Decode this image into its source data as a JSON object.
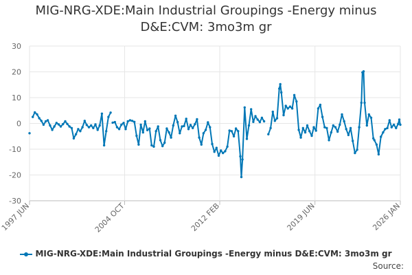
{
  "chart_data": {
    "type": "line",
    "title": "MIG-NRG-XDE:Main Industrial Groupings -Energy minus D&E:CVM: 3mo3m gr",
    "ylim": [
      -30,
      30
    ],
    "yticks": [
      30,
      20,
      10,
      0,
      -10,
      -20,
      -30
    ],
    "xlim": [
      1997.42,
      2026.0
    ],
    "xticks": [
      {
        "label": "1997 JUN",
        "x": 1997.42
      },
      {
        "label": "2004 OCT",
        "x": 2004.75
      },
      {
        "label": "2012 FEB",
        "x": 2012.08
      },
      {
        "label": "2019 JUN",
        "x": 2019.42
      },
      {
        "label": "2026 JAN",
        "x": 2026.0
      }
    ],
    "series": [
      {
        "name": "MIG-NRG-XDE:Main Industrial Groupings -Energy minus D&E:CVM: 3mo3m gr",
        "color": "#0077b6",
        "segments": [
          [
            [
              1997.42,
              -3.8
            ]
          ],
          [
            [
              1997.67,
              2.5
            ],
            [
              1997.83,
              4.3
            ],
            [
              1998.0,
              3.5
            ],
            [
              1998.17,
              2.0
            ],
            [
              1998.33,
              1.0
            ],
            [
              1998.5,
              -0.5
            ],
            [
              1998.67,
              0.8
            ],
            [
              1998.83,
              1.2
            ],
            [
              1999.0,
              -0.8
            ],
            [
              1999.17,
              -2.5
            ],
            [
              1999.33,
              -1.2
            ],
            [
              1999.5,
              0.2
            ],
            [
              1999.67,
              -0.4
            ],
            [
              1999.83,
              -1.2
            ],
            [
              2000.0,
              -0.3
            ],
            [
              2000.17,
              0.8
            ],
            [
              2000.33,
              -0.2
            ],
            [
              2000.5,
              -1.2
            ],
            [
              2000.67,
              -1.8
            ],
            [
              2000.83,
              -5.8
            ],
            [
              2001.0,
              -4.2
            ],
            [
              2001.17,
              -2.2
            ],
            [
              2001.33,
              -3.0
            ],
            [
              2001.5,
              -1.5
            ],
            [
              2001.67,
              1.0
            ],
            [
              2001.83,
              -0.6
            ],
            [
              2002.0,
              -1.5
            ],
            [
              2002.17,
              -0.8
            ],
            [
              2002.33,
              -1.8
            ],
            [
              2002.5,
              -0.4
            ],
            [
              2002.67,
              -2.5
            ],
            [
              2002.83,
              -0.8
            ],
            [
              2003.0,
              3.8
            ],
            [
              2003.17,
              -8.5
            ],
            [
              2003.33,
              -3.0
            ],
            [
              2003.5,
              2.5
            ],
            [
              2003.67,
              4.2
            ]
          ],
          [
            [
              2003.83,
              0.3
            ],
            [
              2004.0,
              0.5
            ],
            [
              2004.17,
              -1.5
            ],
            [
              2004.33,
              -2.2
            ],
            [
              2004.5,
              -0.5
            ],
            [
              2004.67,
              0.2
            ],
            [
              2004.83,
              -2.2
            ],
            [
              2005.0,
              0.8
            ],
            [
              2005.17,
              1.2
            ],
            [
              2005.33,
              1.0
            ],
            [
              2005.5,
              0.6
            ],
            [
              2005.67,
              -4.8
            ],
            [
              2005.83,
              -8.2
            ],
            [
              2006.0,
              -0.5
            ],
            [
              2006.17,
              -3.5
            ],
            [
              2006.33,
              0.8
            ],
            [
              2006.5,
              -2.6
            ],
            [
              2006.67,
              -2.0
            ],
            [
              2006.83,
              -8.5
            ],
            [
              2007.0,
              -9.0
            ],
            [
              2007.17,
              -3.0
            ],
            [
              2007.33,
              -1.2
            ],
            [
              2007.5,
              -6.5
            ],
            [
              2007.67,
              -8.8
            ],
            [
              2007.83,
              -7.5
            ],
            [
              2008.0,
              -2.0
            ],
            [
              2008.17,
              -3.5
            ],
            [
              2008.33,
              -5.5
            ],
            [
              2008.5,
              -0.8
            ],
            [
              2008.67,
              3.0
            ],
            [
              2008.83,
              0.5
            ],
            [
              2009.0,
              -3.8
            ],
            [
              2009.17,
              -1.2
            ],
            [
              2009.33,
              -1.0
            ],
            [
              2009.5,
              1.8
            ],
            [
              2009.67,
              -2.2
            ],
            [
              2009.83,
              -0.6
            ],
            [
              2010.0,
              -1.8
            ],
            [
              2010.17,
              -0.3
            ],
            [
              2010.33,
              1.6
            ],
            [
              2010.5,
              -5.5
            ],
            [
              2010.67,
              -8.2
            ],
            [
              2010.83,
              -3.8
            ],
            [
              2011.0,
              -2.5
            ],
            [
              2011.17,
              0.4
            ],
            [
              2011.33,
              -1.5
            ],
            [
              2011.5,
              -8.0
            ],
            [
              2011.67,
              -11.0
            ],
            [
              2011.83,
              -9.5
            ],
            [
              2012.0,
              -12.5
            ],
            [
              2012.17,
              -10.5
            ],
            [
              2012.33,
              -11.5
            ],
            [
              2012.5,
              -10.8
            ],
            [
              2012.67,
              -9.0
            ],
            [
              2012.83,
              -2.8
            ],
            [
              2013.0,
              -3.0
            ],
            [
              2013.17,
              -5.0
            ],
            [
              2013.33,
              -2.0
            ],
            [
              2013.5,
              -3.0
            ],
            [
              2013.67,
              -12.8
            ],
            [
              2013.75,
              -20.8
            ],
            [
              2013.83,
              -14.0
            ],
            [
              2014.0,
              6.2
            ],
            [
              2014.17,
              -6.0
            ],
            [
              2014.33,
              -0.8
            ],
            [
              2014.5,
              5.5
            ],
            [
              2014.67,
              0.6
            ],
            [
              2014.83,
              2.8
            ],
            [
              2015.0,
              1.5
            ],
            [
              2015.17,
              0.5
            ],
            [
              2015.33,
              2.2
            ],
            [
              2015.5,
              0.8
            ]
          ],
          [
            [
              2015.83,
              -4.2
            ],
            [
              2016.0,
              -1.8
            ],
            [
              2016.17,
              4.5
            ],
            [
              2016.33,
              1.0
            ],
            [
              2016.5,
              2.0
            ],
            [
              2016.67,
              13.5
            ],
            [
              2016.75,
              15.2
            ],
            [
              2016.83,
              12.0
            ],
            [
              2017.0,
              3.2
            ],
            [
              2017.17,
              6.8
            ],
            [
              2017.33,
              5.8
            ],
            [
              2017.5,
              6.5
            ],
            [
              2017.67,
              5.8
            ],
            [
              2017.83,
              11.0
            ],
            [
              2018.0,
              8.5
            ],
            [
              2018.17,
              -2.5
            ],
            [
              2018.33,
              -5.5
            ],
            [
              2018.5,
              -1.8
            ],
            [
              2018.67,
              -3.5
            ],
            [
              2018.83,
              -0.8
            ],
            [
              2019.0,
              -3.0
            ],
            [
              2019.17,
              -4.8
            ],
            [
              2019.33,
              -1.5
            ],
            [
              2019.5,
              -2.8
            ],
            [
              2019.67,
              5.8
            ],
            [
              2019.83,
              7.2
            ],
            [
              2020.0,
              2.5
            ],
            [
              2020.17,
              -1.5
            ],
            [
              2020.33,
              -1.8
            ],
            [
              2020.5,
              -6.5
            ],
            [
              2020.67,
              -3.5
            ],
            [
              2020.83,
              -0.8
            ],
            [
              2021.0,
              -1.5
            ],
            [
              2021.17,
              -3.2
            ],
            [
              2021.33,
              -0.5
            ],
            [
              2021.5,
              3.5
            ],
            [
              2021.67,
              0.8
            ],
            [
              2021.83,
              -2.2
            ],
            [
              2022.0,
              -4.5
            ],
            [
              2022.17,
              -1.8
            ],
            [
              2022.33,
              -6.8
            ],
            [
              2022.5,
              -11.5
            ],
            [
              2022.67,
              -10.2
            ],
            [
              2022.83,
              -1.5
            ],
            [
              2023.0,
              8.0
            ],
            [
              2023.08,
              19.8
            ],
            [
              2023.17,
              20.2
            ],
            [
              2023.25,
              8.0
            ],
            [
              2023.42,
              -0.8
            ],
            [
              2023.58,
              3.5
            ],
            [
              2023.75,
              2.2
            ],
            [
              2023.92,
              -5.8
            ],
            [
              2024.0,
              -6.5
            ],
            [
              2024.17,
              -8.2
            ],
            [
              2024.33,
              -12.0
            ],
            [
              2024.5,
              -5.2
            ],
            [
              2024.67,
              -3.5
            ],
            [
              2024.83,
              -2.2
            ],
            [
              2025.0,
              -1.8
            ],
            [
              2025.17,
              1.2
            ],
            [
              2025.33,
              -1.5
            ],
            [
              2025.5,
              -0.5
            ],
            [
              2025.67,
              -1.8
            ],
            [
              2025.83,
              -0.2
            ],
            [
              2025.92,
              1.5
            ],
            [
              2026.0,
              -0.5
            ]
          ]
        ]
      }
    ]
  },
  "legend": {
    "label": "MIG-NRG-XDE:Main Industrial Groupings -Energy minus D&E:CVM: 3mo3m gr"
  },
  "footer": {
    "source": "Source:"
  }
}
